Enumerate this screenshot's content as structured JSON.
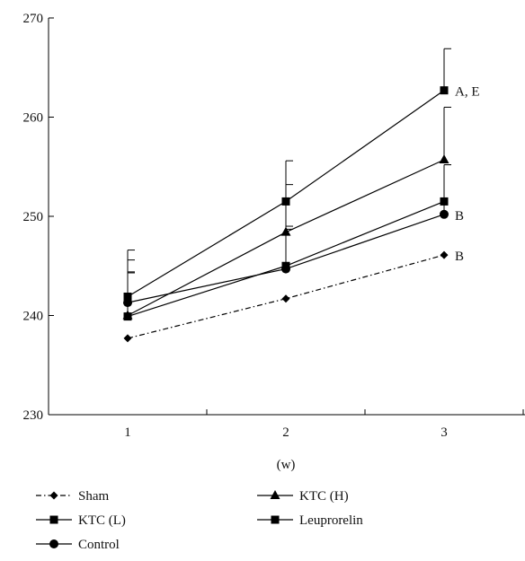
{
  "chart_data": {
    "type": "line",
    "xlabel": "(w)",
    "ylabel": "",
    "title": "",
    "x": [
      1,
      2,
      3
    ],
    "x_ticks": [
      "1",
      "2",
      "3"
    ],
    "ylim": [
      230,
      270
    ],
    "y_ticks": [
      "230",
      "240",
      "250",
      "260",
      "270"
    ],
    "grid": false,
    "legend_position": "bottom",
    "series": [
      {
        "name": "Sham",
        "marker": "diamond",
        "dash": "dashdot",
        "values": [
          237.7,
          241.7,
          246.1
        ],
        "err": [
          0,
          0,
          0
        ]
      },
      {
        "name": "KTC (L)",
        "marker": "square",
        "dash": "solid",
        "values": [
          239.9,
          245.0,
          251.5
        ],
        "err": [
          4.5,
          4.0,
          3.7
        ]
      },
      {
        "name": "Control",
        "marker": "circle",
        "dash": "solid",
        "values": [
          241.3,
          244.7,
          250.2
        ],
        "err": [
          3.0,
          4.0,
          5.0
        ]
      },
      {
        "name": "KTC (H)",
        "marker": "triangle",
        "dash": "solid",
        "values": [
          240.0,
          248.4,
          255.7
        ],
        "err": [
          5.6,
          4.8,
          5.3
        ]
      },
      {
        "name": "Leuprorelin",
        "marker": "square",
        "dash": "solid",
        "values": [
          241.9,
          251.5,
          262.7
        ],
        "err": [
          4.7,
          4.1,
          4.2
        ]
      }
    ],
    "annotations": [
      {
        "text": "A, E",
        "x": 3,
        "y": 262.7
      },
      {
        "text": "B",
        "x": 3,
        "y": 250.2
      },
      {
        "text": "B",
        "x": 3,
        "y": 246.1
      }
    ]
  }
}
